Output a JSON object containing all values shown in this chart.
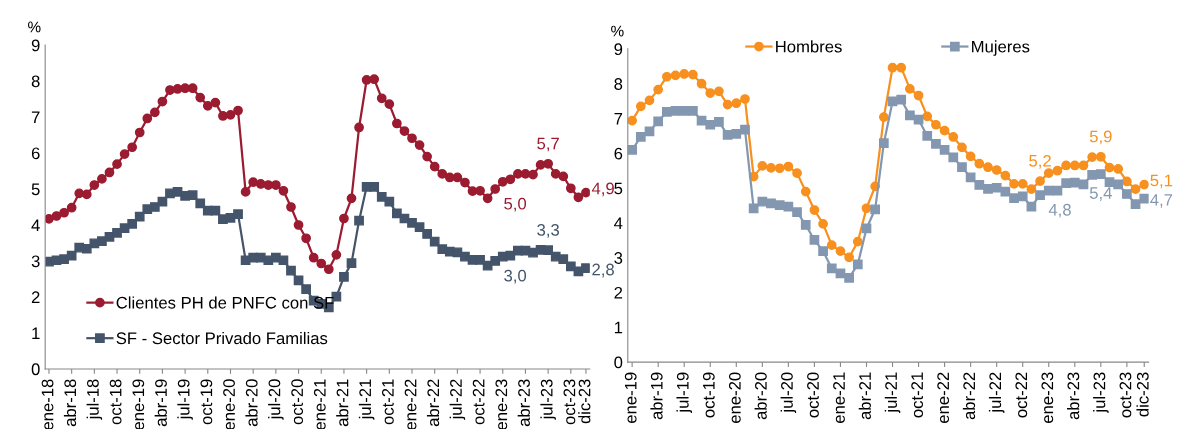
{
  "chart_data": [
    {
      "type": "line",
      "ylabel": "%",
      "legend": "bottom left",
      "grid": false,
      "ylim": [
        0,
        9
      ],
      "yticks": [
        0,
        1,
        2,
        3,
        4,
        5,
        6,
        7,
        8,
        9
      ],
      "categories": [
        "ene-18",
        null,
        null,
        "abr-18",
        null,
        null,
        "jul-18",
        null,
        null,
        "oct-18",
        null,
        null,
        "ene-19",
        null,
        null,
        "abr-19",
        null,
        null,
        "jul-19",
        null,
        null,
        "oct-19",
        null,
        null,
        "ene-20",
        null,
        null,
        "abr-20",
        null,
        null,
        "jul-20",
        null,
        null,
        "oct-20",
        null,
        null,
        "ene-21",
        null,
        null,
        "abr-21",
        null,
        null,
        "jul-21",
        null,
        null,
        "oct-21",
        null,
        null,
        "ene-22",
        null,
        null,
        "abr-22",
        null,
        null,
        "jul-22",
        null,
        null,
        "oct-22",
        null,
        null,
        "ene-23",
        null,
        null,
        "abr-23",
        null,
        null,
        "jul-23",
        null,
        null,
        "oct-23",
        null,
        "dic-23"
      ],
      "series": [
        {
          "name": "Clientes PH de PNFC con SF",
          "color": "#9b1b30",
          "marker": "circle",
          "values": [
            4.17,
            4.25,
            4.34,
            4.48,
            4.88,
            4.85,
            5.11,
            5.28,
            5.46,
            5.69,
            5.97,
            6.16,
            6.57,
            6.96,
            7.13,
            7.43,
            7.75,
            7.78,
            7.8,
            7.8,
            7.54,
            7.31,
            7.4,
            7.03,
            7.06,
            7.18,
            4.92,
            5.19,
            5.14,
            5.11,
            5.11,
            4.95,
            4.5,
            4.0,
            3.63,
            3.09,
            2.93,
            2.77,
            3.17,
            4.18,
            4.74,
            6.71,
            8.03,
            8.05,
            7.52,
            7.36,
            6.82,
            6.61,
            6.41,
            6.22,
            5.9,
            5.62,
            5.42,
            5.32,
            5.32,
            5.18,
            4.94,
            4.95,
            4.74,
            5.0,
            5.2,
            5.27,
            5.42,
            5.42,
            5.4,
            5.67,
            5.7,
            5.42,
            5.35,
            5.02,
            4.77,
            4.9
          ],
          "value_labels": [
            null,
            null,
            null,
            null,
            null,
            null,
            null,
            null,
            null,
            null,
            null,
            null,
            null,
            null,
            null,
            null,
            null,
            null,
            null,
            null,
            null,
            null,
            null,
            null,
            null,
            null,
            null,
            null,
            null,
            null,
            null,
            null,
            null,
            null,
            null,
            null,
            null,
            null,
            null,
            null,
            null,
            null,
            null,
            null,
            null,
            null,
            null,
            null,
            null,
            null,
            null,
            null,
            null,
            null,
            null,
            null,
            null,
            null,
            null,
            "5,0",
            null,
            null,
            null,
            null,
            null,
            null,
            "5,7",
            null,
            null,
            null,
            null,
            "4,9"
          ]
        },
        {
          "name": "SF - Sector Privado Familias",
          "color": "#44546a",
          "marker": "square",
          "values": [
            2.98,
            3.02,
            3.05,
            3.15,
            3.37,
            3.34,
            3.49,
            3.55,
            3.67,
            3.78,
            3.91,
            4.03,
            4.23,
            4.44,
            4.5,
            4.65,
            4.88,
            4.92,
            4.81,
            4.83,
            4.6,
            4.4,
            4.4,
            4.16,
            4.2,
            4.3,
            3.02,
            3.09,
            3.09,
            3.02,
            3.09,
            3.02,
            2.73,
            2.46,
            2.22,
            1.9,
            1.81,
            1.71,
            2.01,
            2.56,
            2.94,
            4.12,
            5.06,
            5.06,
            4.78,
            4.65,
            4.32,
            4.18,
            4.06,
            3.94,
            3.75,
            3.54,
            3.33,
            3.26,
            3.24,
            3.12,
            3.03,
            3.03,
            2.87,
            3.0,
            3.12,
            3.15,
            3.29,
            3.29,
            3.23,
            3.31,
            3.3,
            3.12,
            3.05,
            2.85,
            2.71,
            2.8
          ],
          "value_labels": [
            null,
            null,
            null,
            null,
            null,
            null,
            null,
            null,
            null,
            null,
            null,
            null,
            null,
            null,
            null,
            null,
            null,
            null,
            null,
            null,
            null,
            null,
            null,
            null,
            null,
            null,
            null,
            null,
            null,
            null,
            null,
            null,
            null,
            null,
            null,
            null,
            null,
            null,
            null,
            null,
            null,
            null,
            null,
            null,
            null,
            null,
            null,
            null,
            null,
            null,
            null,
            null,
            null,
            null,
            null,
            null,
            null,
            null,
            null,
            "3,0",
            null,
            null,
            null,
            null,
            null,
            null,
            "3,3",
            null,
            null,
            null,
            null,
            "2,8"
          ]
        }
      ]
    },
    {
      "type": "line",
      "ylabel": "%",
      "legend": "top",
      "grid": false,
      "ylim": [
        0,
        9
      ],
      "yticks": [
        0,
        1,
        2,
        3,
        4,
        5,
        6,
        7,
        8,
        9
      ],
      "categories": [
        "ene-19",
        null,
        null,
        "abr-19",
        null,
        null,
        "jul-19",
        null,
        null,
        "oct-19",
        null,
        null,
        "ene-20",
        null,
        null,
        "abr-20",
        null,
        null,
        "jul-20",
        null,
        null,
        "oct-20",
        null,
        null,
        "ene-21",
        null,
        null,
        "abr-21",
        null,
        null,
        "jul-21",
        null,
        null,
        "oct-21",
        null,
        null,
        "ene-22",
        null,
        null,
        "abr-22",
        null,
        null,
        "jul-22",
        null,
        null,
        "oct-22",
        null,
        null,
        "ene-23",
        null,
        null,
        "abr-23",
        null,
        null,
        "jul-23",
        null,
        null,
        "oct-23",
        null,
        "dic-23"
      ],
      "series": [
        {
          "name": "Hombres",
          "color": "#f7901e",
          "marker": "circle",
          "values": [
            6.94,
            7.35,
            7.52,
            7.83,
            8.2,
            8.24,
            8.28,
            8.26,
            8.0,
            7.73,
            7.78,
            7.4,
            7.44,
            7.56,
            5.33,
            5.64,
            5.58,
            5.57,
            5.62,
            5.43,
            4.9,
            4.37,
            3.97,
            3.36,
            3.19,
            3.01,
            3.46,
            4.42,
            5.05,
            7.04,
            8.46,
            8.46,
            7.85,
            7.66,
            7.06,
            6.82,
            6.65,
            6.47,
            6.17,
            5.91,
            5.7,
            5.6,
            5.52,
            5.36,
            5.12,
            5.12,
            4.97,
            5.2,
            5.43,
            5.5,
            5.65,
            5.65,
            5.65,
            5.89,
            5.9,
            5.59,
            5.55,
            5.19,
            4.97,
            5.1
          ],
          "value_labels": [
            null,
            null,
            null,
            null,
            null,
            null,
            null,
            null,
            null,
            null,
            null,
            null,
            null,
            null,
            null,
            null,
            null,
            null,
            null,
            null,
            null,
            null,
            null,
            null,
            null,
            null,
            null,
            null,
            null,
            null,
            null,
            null,
            null,
            null,
            null,
            null,
            null,
            null,
            null,
            null,
            null,
            null,
            null,
            null,
            null,
            null,
            null,
            "5,2",
            null,
            null,
            null,
            null,
            null,
            null,
            "5,9",
            null,
            null,
            null,
            null,
            "5,1"
          ]
        },
        {
          "name": "Mujeres",
          "color": "#8497b0",
          "marker": "square",
          "values": [
            6.1,
            6.47,
            6.63,
            6.92,
            7.19,
            7.22,
            7.22,
            7.22,
            6.94,
            6.82,
            6.9,
            6.53,
            6.56,
            6.68,
            4.42,
            4.61,
            4.56,
            4.51,
            4.47,
            4.31,
            3.94,
            3.51,
            3.19,
            2.69,
            2.55,
            2.42,
            2.81,
            3.84,
            4.39,
            6.29,
            7.49,
            7.54,
            7.09,
            6.97,
            6.5,
            6.27,
            6.1,
            5.88,
            5.6,
            5.31,
            5.09,
            4.98,
            5.01,
            4.9,
            4.71,
            4.76,
            4.47,
            4.8,
            4.93,
            4.93,
            5.14,
            5.16,
            5.11,
            5.38,
            5.4,
            5.17,
            5.11,
            4.83,
            4.54,
            4.7
          ],
          "value_labels": [
            null,
            null,
            null,
            null,
            null,
            null,
            null,
            null,
            null,
            null,
            null,
            null,
            null,
            null,
            null,
            null,
            null,
            null,
            null,
            null,
            null,
            null,
            null,
            null,
            null,
            null,
            null,
            null,
            null,
            null,
            null,
            null,
            null,
            null,
            null,
            null,
            null,
            null,
            null,
            null,
            null,
            null,
            null,
            null,
            null,
            null,
            null,
            "4,8",
            null,
            null,
            null,
            null,
            null,
            null,
            "5,4",
            null,
            null,
            null,
            null,
            "4,7"
          ]
        }
      ]
    }
  ]
}
